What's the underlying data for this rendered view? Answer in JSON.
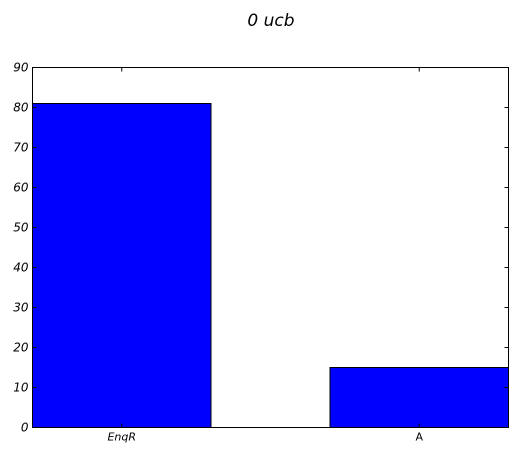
{
  "chart_data": {
    "type": "bar",
    "title": "0  ucb",
    "categories": [
      "EnqR",
      "A"
    ],
    "category_italic": [
      true,
      false
    ],
    "values": [
      81,
      15
    ],
    "ylim": [
      0,
      90
    ],
    "yticks": [
      0,
      10,
      20,
      30,
      40,
      50,
      60,
      70,
      80,
      90
    ],
    "xlabel": "",
    "ylabel": "",
    "grid": false,
    "bar_color": "#0000ff",
    "edge_color": "#000000"
  }
}
